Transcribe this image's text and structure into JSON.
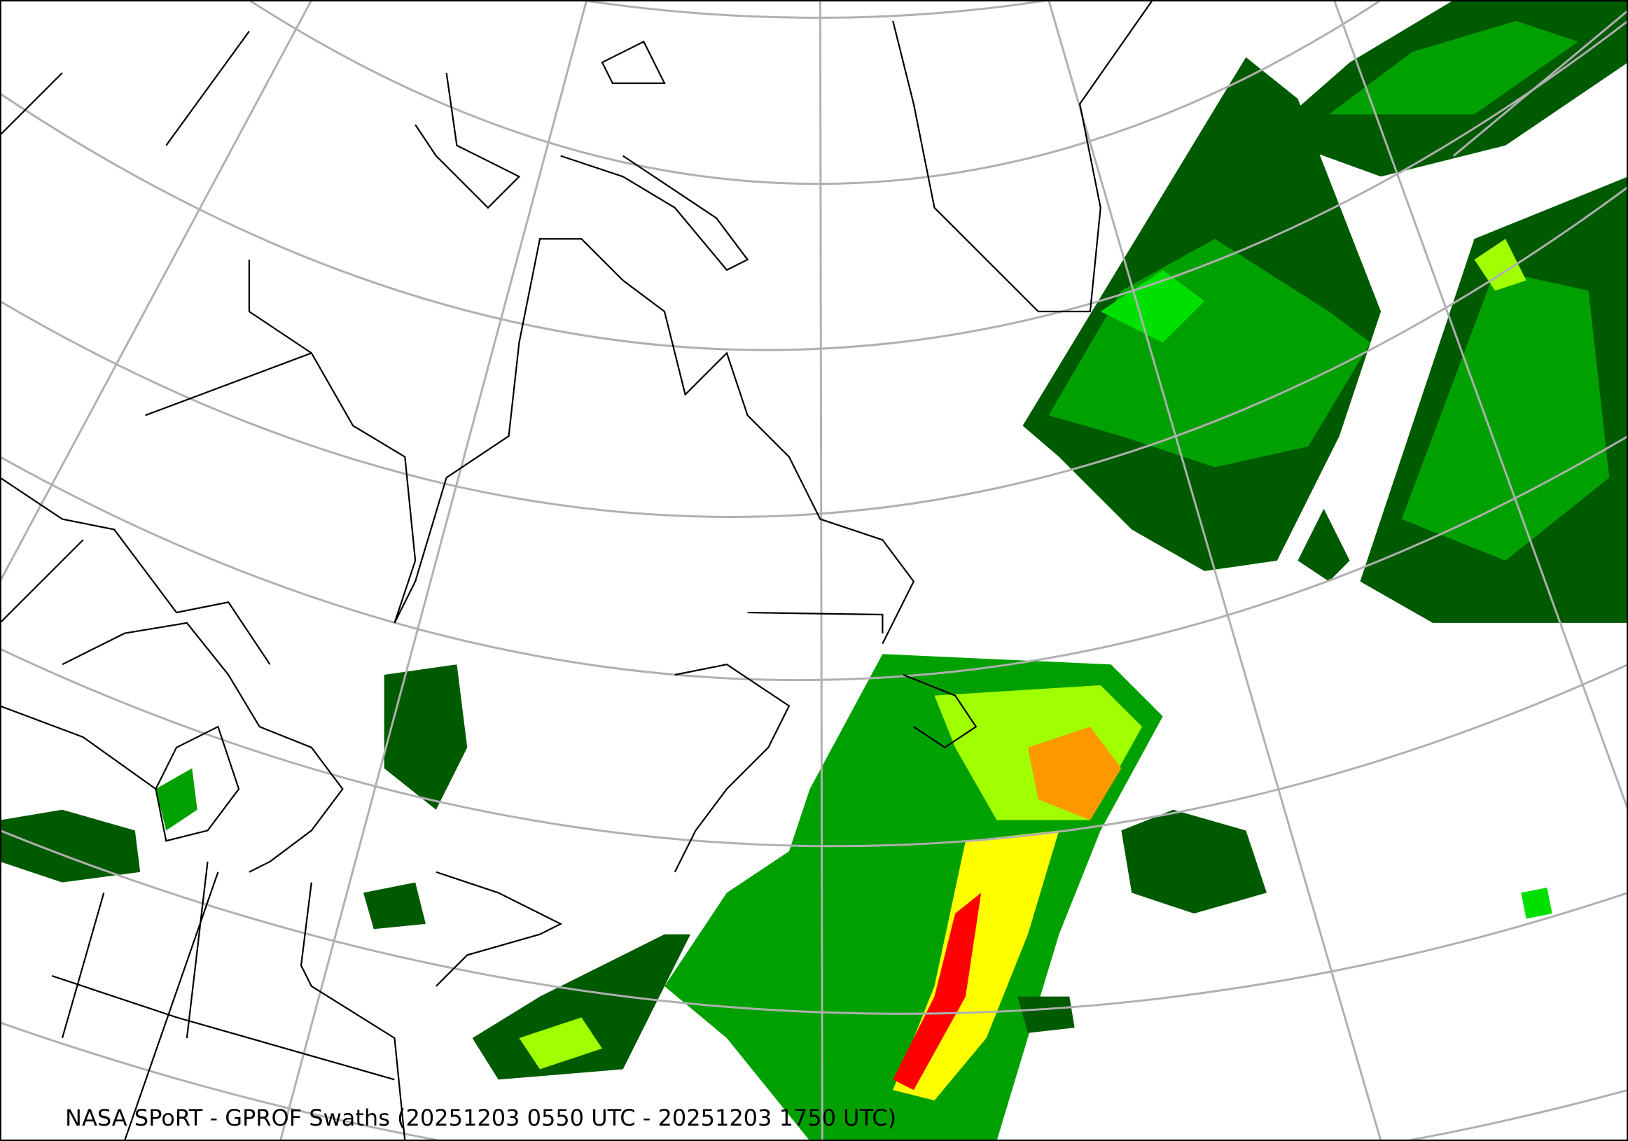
{
  "map": {
    "title": "NASA SPoRT - GPROF Swaths (20251203 0550 UTC - 20251203 1750 UTC)",
    "projection": "conic",
    "colors": {
      "graticule": "#b0b0b0",
      "coastline": "#000000",
      "precip_light_dark_green": "#005a00",
      "precip_green": "#00a000",
      "precip_bright_green": "#00e000",
      "precip_yellow_green": "#a0ff00",
      "precip_yellow": "#ffff00",
      "precip_orange": "#ff9900",
      "precip_red": "#ff0000"
    }
  }
}
